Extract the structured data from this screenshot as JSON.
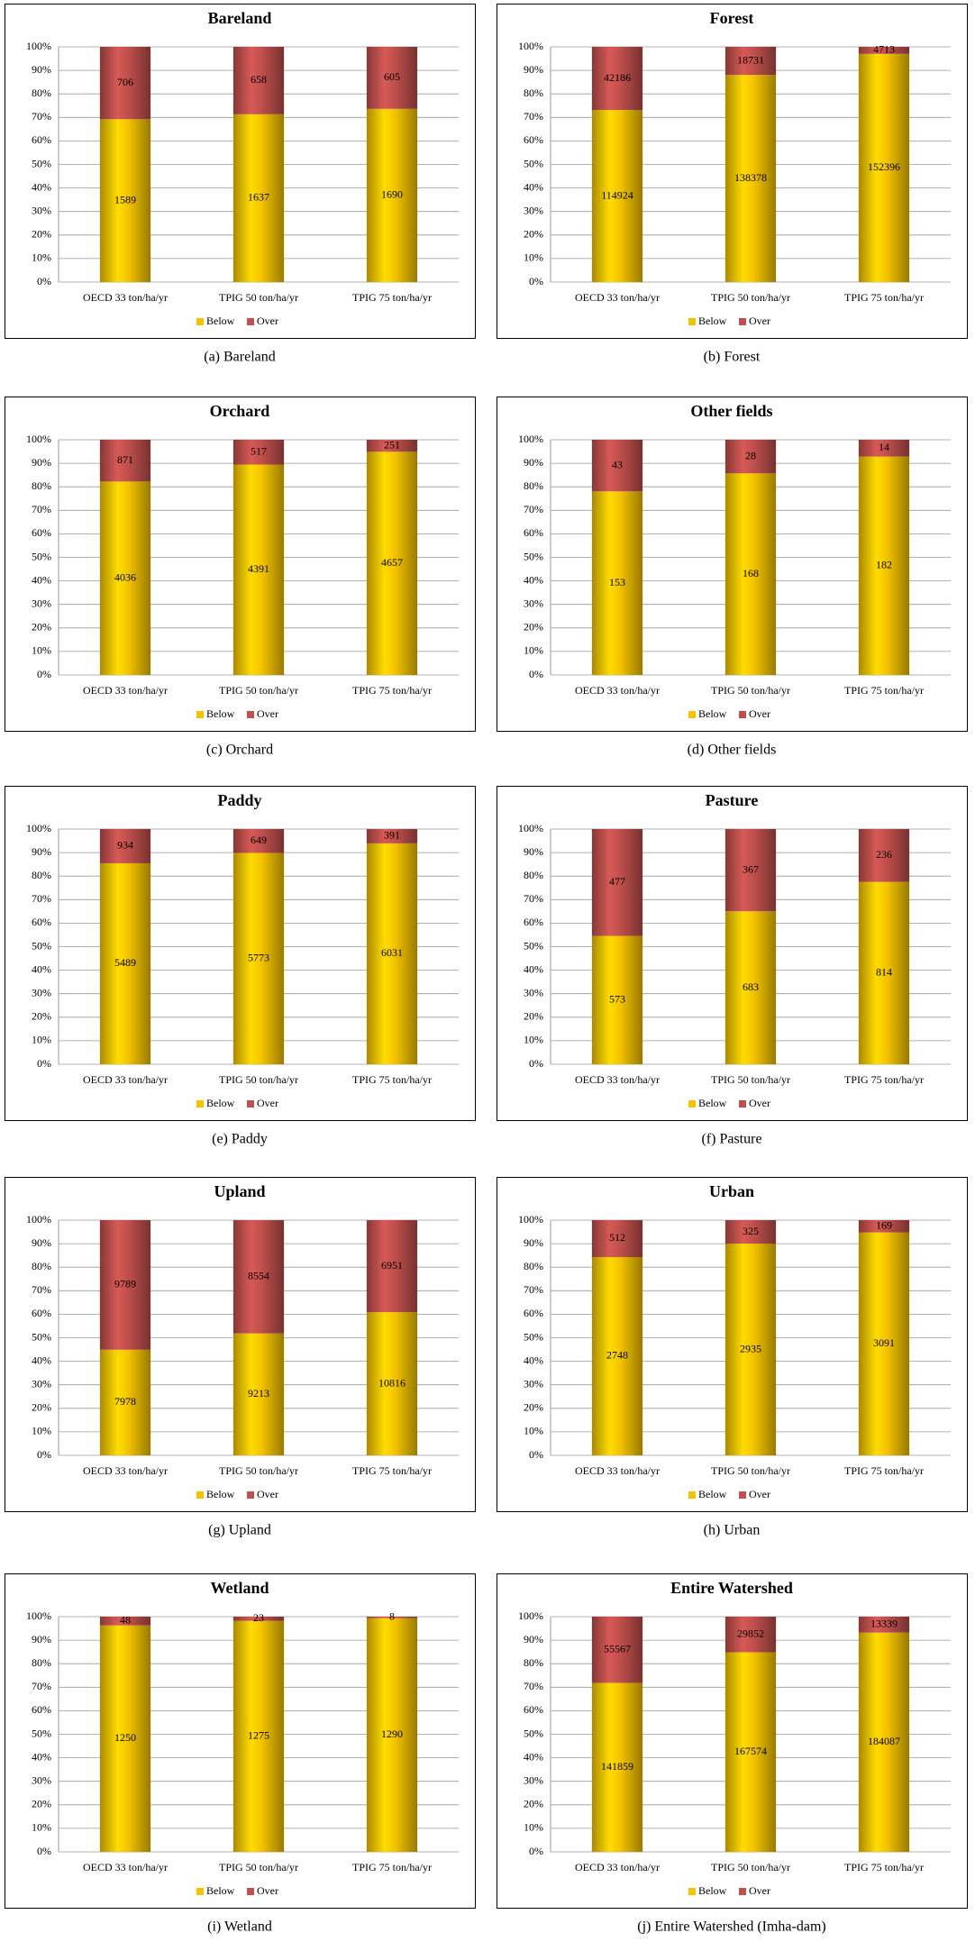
{
  "chart_data": [
    {
      "type": "bar",
      "stacking": "percent",
      "title": "Bareland",
      "caption": "(a)  Bareland",
      "categories": [
        "OECD 33 ton/ha/yr",
        "TPIG 50 ton/ha/yr",
        "TPIG 75 ton/ha/yr"
      ],
      "series": [
        {
          "name": "Below",
          "color": "#f5c400",
          "values": [
            1589,
            1637,
            1690
          ]
        },
        {
          "name": "Over",
          "color": "#c0504d",
          "values": [
            706,
            658,
            605
          ]
        }
      ],
      "ylim": [
        0,
        100
      ],
      "yticks": [
        {
          "value": 0,
          "label": "0%"
        },
        {
          "value": 10,
          "label": "10%"
        },
        {
          "value": 20,
          "label": "20%"
        },
        {
          "value": 30,
          "label": "30%"
        },
        {
          "value": 40,
          "label": "40%"
        },
        {
          "value": 50,
          "label": "50%"
        },
        {
          "value": 60,
          "label": "60%"
        },
        {
          "value": 70,
          "label": "70%"
        },
        {
          "value": 80,
          "label": "80%"
        },
        {
          "value": 90,
          "label": "90%"
        },
        {
          "value": 100,
          "label": "100%"
        }
      ],
      "grid": true,
      "legend": "bottom"
    },
    {
      "type": "bar",
      "stacking": "percent",
      "title": "Forest",
      "caption": "(b)  Forest",
      "categories": [
        "OECD 33 ton/ha/yr",
        "TPIG 50 ton/ha/yr",
        "TPIG 75 ton/ha/yr"
      ],
      "series": [
        {
          "name": "Below",
          "color": "#f5c400",
          "values": [
            114924,
            138378,
            152396
          ]
        },
        {
          "name": "Over",
          "color": "#c0504d",
          "values": [
            42186,
            18731,
            4713
          ]
        }
      ],
      "ylim": [
        0,
        100
      ],
      "yticks": [
        {
          "value": 0,
          "label": "0%"
        },
        {
          "value": 10,
          "label": "10%"
        },
        {
          "value": 20,
          "label": "20%"
        },
        {
          "value": 30,
          "label": "30%"
        },
        {
          "value": 40,
          "label": "40%"
        },
        {
          "value": 50,
          "label": "50%"
        },
        {
          "value": 60,
          "label": "60%"
        },
        {
          "value": 70,
          "label": "70%"
        },
        {
          "value": 80,
          "label": "80%"
        },
        {
          "value": 90,
          "label": "90%"
        },
        {
          "value": 100,
          "label": "100%"
        }
      ],
      "grid": true,
      "legend": "bottom"
    },
    {
      "type": "bar",
      "stacking": "percent",
      "title": "Orchard",
      "caption": "(c)  Orchard",
      "categories": [
        "OECD 33 ton/ha/yr",
        "TPIG 50 ton/ha/yr",
        "TPIG 75 ton/ha/yr"
      ],
      "series": [
        {
          "name": "Below",
          "color": "#f5c400",
          "values": [
            4036,
            4391,
            4657
          ]
        },
        {
          "name": "Over",
          "color": "#c0504d",
          "values": [
            871,
            517,
            251
          ]
        }
      ],
      "ylim": [
        0,
        100
      ],
      "yticks": [
        {
          "value": 0,
          "label": "0%"
        },
        {
          "value": 10,
          "label": "10%"
        },
        {
          "value": 20,
          "label": "20%"
        },
        {
          "value": 30,
          "label": "30%"
        },
        {
          "value": 40,
          "label": "40%"
        },
        {
          "value": 50,
          "label": "50%"
        },
        {
          "value": 60,
          "label": "60%"
        },
        {
          "value": 70,
          "label": "70%"
        },
        {
          "value": 80,
          "label": "80%"
        },
        {
          "value": 90,
          "label": "90%"
        },
        {
          "value": 100,
          "label": "100%"
        }
      ],
      "grid": true,
      "legend": "bottom"
    },
    {
      "type": "bar",
      "stacking": "percent",
      "title": "Other fields",
      "caption": "(d)  Other  fields",
      "categories": [
        "OECD 33 ton/ha/yr",
        "TPIG 50 ton/ha/yr",
        "TPIG 75 ton/ha/yr"
      ],
      "series": [
        {
          "name": "Below",
          "color": "#f5c400",
          "values": [
            153,
            168,
            182
          ]
        },
        {
          "name": "Over",
          "color": "#c0504d",
          "values": [
            43,
            28,
            14
          ]
        }
      ],
      "ylim": [
        0,
        100
      ],
      "yticks": [
        {
          "value": 0,
          "label": "0%"
        },
        {
          "value": 10,
          "label": "10%"
        },
        {
          "value": 20,
          "label": "20%"
        },
        {
          "value": 30,
          "label": "30%"
        },
        {
          "value": 40,
          "label": "40%"
        },
        {
          "value": 50,
          "label": "50%"
        },
        {
          "value": 60,
          "label": "60%"
        },
        {
          "value": 70,
          "label": "70%"
        },
        {
          "value": 80,
          "label": "80%"
        },
        {
          "value": 90,
          "label": "90%"
        },
        {
          "value": 100,
          "label": "100%"
        }
      ],
      "grid": true,
      "legend": "bottom"
    },
    {
      "type": "bar",
      "stacking": "percent",
      "title": "Paddy",
      "caption": "(e)  Paddy",
      "categories": [
        "OECD 33 ton/ha/yr",
        "TPIG 50 ton/ha/yr",
        "TPIG 75 ton/ha/yr"
      ],
      "series": [
        {
          "name": "Below",
          "color": "#f5c400",
          "values": [
            5489,
            5773,
            6031
          ]
        },
        {
          "name": "Over",
          "color": "#c0504d",
          "values": [
            934,
            649,
            391
          ]
        }
      ],
      "ylim": [
        0,
        100
      ],
      "yticks": [
        {
          "value": 0,
          "label": "0%"
        },
        {
          "value": 10,
          "label": "10%"
        },
        {
          "value": 20,
          "label": "20%"
        },
        {
          "value": 30,
          "label": "30%"
        },
        {
          "value": 40,
          "label": "40%"
        },
        {
          "value": 50,
          "label": "50%"
        },
        {
          "value": 60,
          "label": "60%"
        },
        {
          "value": 70,
          "label": "70%"
        },
        {
          "value": 80,
          "label": "80%"
        },
        {
          "value": 90,
          "label": "90%"
        },
        {
          "value": 100,
          "label": "100%"
        }
      ],
      "grid": true,
      "legend": "bottom"
    },
    {
      "type": "bar",
      "stacking": "percent",
      "title": "Pasture",
      "caption": "(f)  Pasture",
      "categories": [
        "OECD 33 ton/ha/yr",
        "TPIG 50 ton/ha/yr",
        "TPIG 75 ton/ha/yr"
      ],
      "series": [
        {
          "name": "Below",
          "color": "#f5c400",
          "values": [
            573,
            683,
            814
          ]
        },
        {
          "name": "Over",
          "color": "#c0504d",
          "values": [
            477,
            367,
            236
          ]
        }
      ],
      "ylim": [
        0,
        100
      ],
      "yticks": [
        {
          "value": 0,
          "label": "0%"
        },
        {
          "value": 10,
          "label": "10%"
        },
        {
          "value": 20,
          "label": "20%"
        },
        {
          "value": 30,
          "label": "30%"
        },
        {
          "value": 40,
          "label": "40%"
        },
        {
          "value": 50,
          "label": "50%"
        },
        {
          "value": 60,
          "label": "60%"
        },
        {
          "value": 70,
          "label": "70%"
        },
        {
          "value": 80,
          "label": "80%"
        },
        {
          "value": 90,
          "label": "90%"
        },
        {
          "value": 100,
          "label": "100%"
        }
      ],
      "grid": true,
      "legend": "bottom"
    },
    {
      "type": "bar",
      "stacking": "percent",
      "title": "Upland",
      "caption": "(g)  Upland",
      "categories": [
        "OECD 33 ton/ha/yr",
        "TPIG 50 ton/ha/yr",
        "TPIG 75 ton/ha/yr"
      ],
      "series": [
        {
          "name": "Below",
          "color": "#f5c400",
          "values": [
            7978,
            9213,
            10816
          ]
        },
        {
          "name": "Over",
          "color": "#c0504d",
          "values": [
            9789,
            8554,
            6951
          ]
        }
      ],
      "ylim": [
        0,
        100
      ],
      "yticks": [
        {
          "value": 0,
          "label": "0%"
        },
        {
          "value": 10,
          "label": "10%"
        },
        {
          "value": 20,
          "label": "20%"
        },
        {
          "value": 30,
          "label": "30%"
        },
        {
          "value": 40,
          "label": "40%"
        },
        {
          "value": 50,
          "label": "50%"
        },
        {
          "value": 60,
          "label": "60%"
        },
        {
          "value": 70,
          "label": "70%"
        },
        {
          "value": 80,
          "label": "80%"
        },
        {
          "value": 90,
          "label": "90%"
        },
        {
          "value": 100,
          "label": "100%"
        }
      ],
      "grid": true,
      "legend": "bottom"
    },
    {
      "type": "bar",
      "stacking": "percent",
      "title": "Urban",
      "caption": "(h)  Urban",
      "categories": [
        "OECD 33 ton/ha/yr",
        "TPIG 50 ton/ha/yr",
        "TPIG 75 ton/ha/yr"
      ],
      "series": [
        {
          "name": "Below",
          "color": "#f5c400",
          "values": [
            2748,
            2935,
            3091
          ]
        },
        {
          "name": "Over",
          "color": "#c0504d",
          "values": [
            512,
            325,
            169
          ]
        }
      ],
      "ylim": [
        0,
        100
      ],
      "yticks": [
        {
          "value": 0,
          "label": "0%"
        },
        {
          "value": 10,
          "label": "10%"
        },
        {
          "value": 20,
          "label": "20%"
        },
        {
          "value": 30,
          "label": "30%"
        },
        {
          "value": 40,
          "label": "40%"
        },
        {
          "value": 50,
          "label": "50%"
        },
        {
          "value": 60,
          "label": "60%"
        },
        {
          "value": 70,
          "label": "70%"
        },
        {
          "value": 80,
          "label": "80%"
        },
        {
          "value": 90,
          "label": "90%"
        },
        {
          "value": 100,
          "label": "100%"
        }
      ],
      "grid": true,
      "legend": "bottom"
    },
    {
      "type": "bar",
      "stacking": "percent",
      "title": "Wetland",
      "caption": "(i)  Wetland",
      "categories": [
        "OECD 33 ton/ha/yr",
        "TPIG 50 ton/ha/yr",
        "TPIG 75 ton/ha/yr"
      ],
      "series": [
        {
          "name": "Below",
          "color": "#f5c400",
          "values": [
            1250,
            1275,
            1290
          ]
        },
        {
          "name": "Over",
          "color": "#c0504d",
          "values": [
            48,
            23,
            8
          ]
        }
      ],
      "ylim": [
        0,
        100
      ],
      "yticks": [
        {
          "value": 0,
          "label": "0%"
        },
        {
          "value": 10,
          "label": "10%"
        },
        {
          "value": 20,
          "label": "20%"
        },
        {
          "value": 30,
          "label": "30%"
        },
        {
          "value": 40,
          "label": "40%"
        },
        {
          "value": 50,
          "label": "50%"
        },
        {
          "value": 60,
          "label": "60%"
        },
        {
          "value": 70,
          "label": "70%"
        },
        {
          "value": 80,
          "label": "80%"
        },
        {
          "value": 90,
          "label": "90%"
        },
        {
          "value": 100,
          "label": "100%"
        }
      ],
      "grid": true,
      "legend": "bottom"
    },
    {
      "type": "bar",
      "stacking": "percent",
      "title": "Entire Watershed",
      "caption": "(j)  Entire  Watershed  (Imha-dam)",
      "categories": [
        "OECD 33 ton/ha/yr",
        "TPIG 50 ton/ha/yr",
        "TPIG 75 ton/ha/yr"
      ],
      "series": [
        {
          "name": "Below",
          "color": "#f5c400",
          "values": [
            141859,
            167574,
            184087
          ]
        },
        {
          "name": "Over",
          "color": "#c0504d",
          "values": [
            55567,
            29852,
            13339
          ]
        }
      ],
      "ylim": [
        0,
        100
      ],
      "yticks": [
        {
          "value": 0,
          "label": "0%"
        },
        {
          "value": 10,
          "label": "10%"
        },
        {
          "value": 20,
          "label": "20%"
        },
        {
          "value": 30,
          "label": "30%"
        },
        {
          "value": 40,
          "label": "40%"
        },
        {
          "value": 50,
          "label": "50%"
        },
        {
          "value": 60,
          "label": "60%"
        },
        {
          "value": 70,
          "label": "70%"
        },
        {
          "value": 80,
          "label": "80%"
        },
        {
          "value": 90,
          "label": "90%"
        },
        {
          "value": 100,
          "label": "100%"
        }
      ],
      "grid": true,
      "legend": "bottom"
    }
  ]
}
